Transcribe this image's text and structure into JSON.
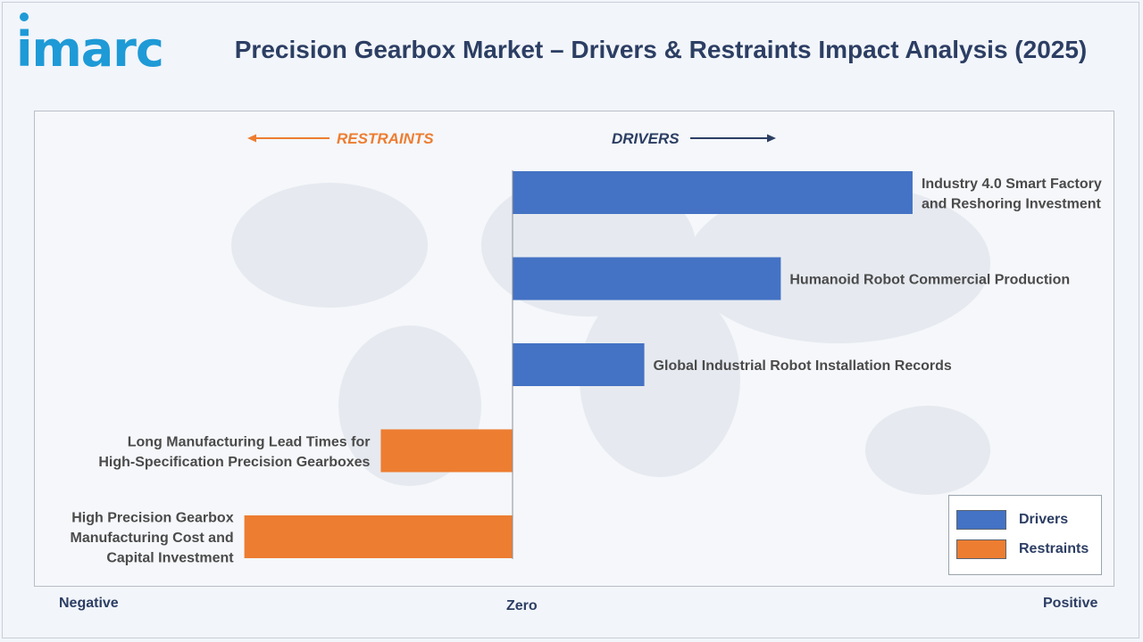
{
  "brand": {
    "logo_text": "imarc"
  },
  "header": {
    "title": "Precision Gearbox Market – Drivers & Restraints Impact Analysis (2025)"
  },
  "colors": {
    "drivers": "#4472c4",
    "restraints": "#ed7d31",
    "text": "#2c3e63",
    "label_text": "#4a4a4a"
  },
  "chart_data": {
    "type": "bar",
    "orientation": "horizontal",
    "direction_labels": {
      "left": "RESTRAINTS",
      "right": "DRIVERS"
    },
    "axis_labels": {
      "negative": "Negative",
      "zero": "Zero",
      "positive": "Positive"
    },
    "xlim": [
      -1,
      1
    ],
    "bars": [
      {
        "label": [
          "Industry 4.0 Smart Factory",
          "and Reshoring Investment"
        ],
        "value": 0.85,
        "series": "Drivers"
      },
      {
        "label": [
          "Humanoid Robot Commercial Production"
        ],
        "value": 0.57,
        "series": "Drivers"
      },
      {
        "label": [
          "Global Industrial Robot Installation Records"
        ],
        "value": 0.28,
        "series": "Drivers"
      },
      {
        "label": [
          "Long Manufacturing Lead Times for",
          "High-Specification Precision Gearboxes"
        ],
        "value": -0.28,
        "series": "Restraints"
      },
      {
        "label": [
          "High Precision Gearbox",
          "Manufacturing Cost and",
          "Capital Investment"
        ],
        "value": -0.57,
        "series": "Restraints"
      }
    ],
    "legend": {
      "position": "bottom-right",
      "entries": [
        "Drivers",
        "Restraints"
      ]
    }
  }
}
